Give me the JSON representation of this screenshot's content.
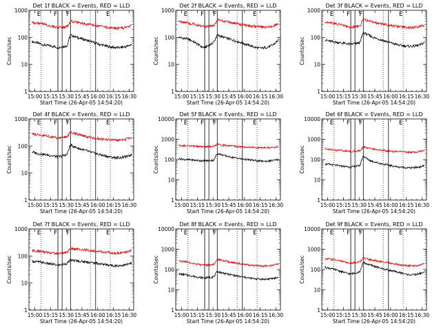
{
  "colors": {
    "events": "#000000",
    "lld": "#dd0000",
    "axes": "#000000"
  },
  "chart_data": [
    {
      "type": "line",
      "title": "Det 1f BLACK = Events, RED = LLD",
      "xlabel": "Start Time (26-Apr-05 14:54:20)",
      "ylabel": "Counts/sec",
      "x_ticks": [
        "15:00",
        "15:15",
        "15:30",
        "15:45",
        "16:00",
        "16:15",
        "16:30"
      ],
      "y_ticks": [
        "1",
        "10",
        "100",
        "1000"
      ],
      "ylim": [
        1,
        1000
      ],
      "yscale": "log",
      "vlines_dotted": [
        "15:06",
        "15:22",
        "15:53",
        "16:12"
      ],
      "vlines_solid": [
        "15:22",
        "15:26",
        "15:34",
        "15:58"
      ],
      "flags": [
        "E",
        "F",
        "F",
        "E"
      ],
      "series": [
        {
          "values": [
            70,
            65,
            60,
            55,
            52,
            50,
            48,
            45,
            42,
            44,
            46,
            50,
            120,
            110,
            100,
            92,
            85,
            78,
            72,
            66,
            60,
            55,
            52,
            48,
            45,
            43,
            42,
            42,
            43,
            45,
            48,
            55
          ]
        },
        {
          "values": [
            350,
            340,
            330,
            320,
            300,
            280,
            260,
            240,
            230,
            235,
            240,
            250,
            400,
            380,
            360,
            340,
            320,
            300,
            290,
            280,
            270,
            260,
            250,
            240,
            230,
            225,
            220,
            220,
            225,
            235,
            250,
            280
          ]
        }
      ]
    },
    {
      "type": "line",
      "title": "Det 2f BLACK = Events, RED = LLD",
      "xlabel": "Start Time (26-Apr-05 14:54:20)",
      "ylabel": "Counts/sec",
      "x_ticks": [
        "15:00",
        "15:15",
        "15:30",
        "15:45",
        "16:00",
        "16:15",
        "16:30"
      ],
      "y_ticks": [
        "1",
        "10",
        "100",
        "1000"
      ],
      "ylim": [
        1,
        1000
      ],
      "yscale": "log",
      "vlines_dotted": [
        "15:06",
        "15:22",
        "15:53",
        "16:12"
      ],
      "vlines_solid": [
        "15:22",
        "15:26",
        "15:34",
        "15:58"
      ],
      "flags": [
        "E",
        "F",
        "F",
        "E"
      ],
      "series": [
        {
          "values": [
            100,
            95,
            90,
            85,
            75,
            65,
            55,
            45,
            42,
            48,
            55,
            70,
            120,
            110,
            100,
            92,
            85,
            78,
            72,
            66,
            60,
            55,
            50,
            46,
            42,
            40,
            40,
            42,
            45,
            50,
            60,
            80
          ]
        },
        {
          "values": [
            380,
            370,
            360,
            340,
            320,
            300,
            280,
            260,
            250,
            255,
            260,
            270,
            450,
            420,
            400,
            380,
            360,
            340,
            320,
            300,
            290,
            280,
            270,
            260,
            250,
            245,
            240,
            240,
            245,
            255,
            280,
            320
          ]
        }
      ]
    },
    {
      "type": "line",
      "title": "Det 3f BLACK = Events, RED = LLD",
      "xlabel": "Start Time (26-Apr-05 14:54:20)",
      "ylabel": "Counts/sec",
      "x_ticks": [
        "15:00",
        "15:15",
        "15:30",
        "15:45",
        "16:00",
        "16:15",
        "16:30"
      ],
      "y_ticks": [
        "1",
        "10",
        "100",
        "1000"
      ],
      "ylim": [
        1,
        1000
      ],
      "yscale": "log",
      "vlines_dotted": [
        "15:06",
        "15:22",
        "15:53",
        "16:12"
      ],
      "vlines_solid": [
        "15:22",
        "15:26",
        "15:34",
        "15:58"
      ],
      "flags": [
        "E",
        "F",
        "F",
        "E"
      ],
      "series": [
        {
          "values": [
            80,
            75,
            70,
            68,
            65,
            62,
            60,
            58,
            55,
            58,
            60,
            65,
            150,
            130,
            115,
            100,
            92,
            85,
            78,
            72,
            66,
            60,
            56,
            52,
            50,
            48,
            47,
            47,
            48,
            50,
            55,
            65
          ]
        },
        {
          "values": [
            380,
            370,
            350,
            330,
            310,
            290,
            270,
            250,
            240,
            245,
            250,
            260,
            480,
            430,
            400,
            370,
            350,
            330,
            310,
            290,
            280,
            270,
            260,
            250,
            240,
            235,
            230,
            230,
            235,
            245,
            260,
            290
          ]
        }
      ]
    },
    {
      "type": "line",
      "title": "Det 4f BLACK = Events, RED = LLD",
      "xlabel": "Start Time (26-Apr-05 14:54:20)",
      "ylabel": "Counts/sec",
      "x_ticks": [
        "15:00",
        "15:15",
        "15:30",
        "15:45",
        "16:00",
        "16:15",
        "16:30"
      ],
      "y_ticks": [
        "1",
        "10",
        "100",
        "1000"
      ],
      "ylim": [
        1,
        1000
      ],
      "yscale": "log",
      "vlines_dotted": [
        "15:06",
        "15:22",
        "15:53",
        "16:12"
      ],
      "vlines_solid": [
        "15:22",
        "15:26",
        "15:34",
        "15:58"
      ],
      "flags": [
        "E",
        "F",
        "F",
        "E"
      ],
      "series": [
        {
          "values": [
            60,
            56,
            52,
            50,
            48,
            46,
            44,
            42,
            40,
            42,
            45,
            50,
            110,
            95,
            85,
            78,
            72,
            66,
            60,
            56,
            52,
            48,
            45,
            42,
            40,
            38,
            37,
            37,
            38,
            40,
            42,
            48
          ]
        },
        {
          "values": [
            280,
            270,
            260,
            250,
            240,
            230,
            220,
            210,
            200,
            205,
            210,
            220,
            320,
            300,
            280,
            260,
            240,
            220,
            210,
            200,
            190,
            185,
            180,
            175,
            170,
            168,
            165,
            165,
            168,
            175,
            190,
            210
          ]
        }
      ]
    },
    {
      "type": "line",
      "title": "Det 5f BLACK = Events, RED = LLD",
      "xlabel": "Start Time (26-Apr-05 14:54:20)",
      "ylabel": "Counts/sec",
      "x_ticks": [
        "15:00",
        "15:15",
        "15:30",
        "15:45",
        "16:00",
        "16:15",
        "16:30"
      ],
      "y_ticks": [
        "1",
        "10",
        "100",
        "1000",
        "10000"
      ],
      "ylim": [
        1,
        10000
      ],
      "yscale": "log",
      "vlines_dotted": [
        "15:06",
        "15:22",
        "15:53",
        "16:12"
      ],
      "vlines_solid": [
        "15:22",
        "15:26",
        "15:34",
        "15:58"
      ],
      "flags": [
        "E",
        "F",
        "F",
        "E"
      ],
      "series": [
        {
          "values": [
            110,
            105,
            100,
            98,
            95,
            92,
            90,
            88,
            85,
            88,
            90,
            95,
            200,
            180,
            160,
            145,
            135,
            125,
            118,
            110,
            105,
            100,
            96,
            92,
            88,
            85,
            83,
            83,
            85,
            88,
            92,
            100
          ]
        },
        {
          "values": [
            500,
            490,
            480,
            470,
            460,
            450,
            440,
            430,
            420,
            425,
            430,
            440,
            560,
            530,
            510,
            490,
            470,
            455,
            440,
            430,
            420,
            410,
            400,
            395,
            390,
            385,
            380,
            380,
            385,
            395,
            410,
            430
          ]
        }
      ]
    },
    {
      "type": "line",
      "title": "Det 6f BLACK = Events, RED = LLD",
      "xlabel": "Start Time (26-Apr-05 14:54:20)",
      "ylabel": "Counts/sec",
      "x_ticks": [
        "15:00",
        "15:15",
        "15:30",
        "15:45",
        "16:00",
        "16:15",
        "16:30"
      ],
      "y_ticks": [
        "1",
        "10",
        "100",
        "1000",
        "10000"
      ],
      "ylim": [
        1,
        10000
      ],
      "yscale": "log",
      "vlines_dotted": [
        "15:06",
        "15:22",
        "15:53",
        "16:12"
      ],
      "vlines_solid": [
        "15:22",
        "15:26",
        "15:34",
        "15:58"
      ],
      "flags": [
        "E",
        "F",
        "F",
        "E"
      ],
      "series": [
        {
          "values": [
            60,
            58,
            55,
            53,
            50,
            48,
            46,
            44,
            42,
            45,
            48,
            52,
            150,
            110,
            90,
            80,
            72,
            65,
            60,
            56,
            52,
            48,
            45,
            43,
            42,
            40,
            39,
            39,
            40,
            42,
            45,
            50
          ]
        },
        {
          "values": [
            330,
            320,
            310,
            300,
            290,
            280,
            270,
            260,
            250,
            255,
            260,
            270,
            420,
            380,
            350,
            330,
            310,
            295,
            285,
            275,
            265,
            255,
            250,
            245,
            240,
            235,
            230,
            230,
            235,
            245,
            260,
            280
          ]
        }
      ]
    },
    {
      "type": "line",
      "title": "Det 7f BLACK = Events, RED = LLD",
      "xlabel": "Start Time (26-Apr-05 14:54:20)",
      "ylabel": "Counts/sec",
      "x_ticks": [
        "15:00",
        "15:15",
        "15:30",
        "15:45",
        "16:00",
        "16:15",
        "16:30"
      ],
      "y_ticks": [
        "1",
        "10",
        "100",
        "1000"
      ],
      "ylim": [
        1,
        1000
      ],
      "yscale": "log",
      "vlines_dotted": [
        "15:06",
        "15:22",
        "15:53",
        "16:12"
      ],
      "vlines_solid": [
        "15:22",
        "15:26",
        "15:34",
        "15:58"
      ],
      "flags": [
        "E",
        "F",
        "F",
        "E"
      ],
      "series": [
        {
          "values": [
            65,
            62,
            60,
            58,
            55,
            52,
            50,
            48,
            45,
            48,
            50,
            55,
            70,
            68,
            66,
            64,
            62,
            60,
            58,
            56,
            54,
            52,
            50,
            48,
            46,
            45,
            44,
            44,
            45,
            47,
            50,
            55
          ]
        },
        {
          "values": [
            160,
            155,
            150,
            145,
            140,
            135,
            130,
            125,
            120,
            125,
            130,
            140,
            190,
            185,
            180,
            175,
            170,
            165,
            160,
            155,
            150,
            145,
            140,
            138,
            135,
            132,
            130,
            130,
            132,
            138,
            145,
            155
          ]
        }
      ]
    },
    {
      "type": "line",
      "title": "Det 8f BLACK = Events, RED = LLD",
      "xlabel": "Start Time (26-Apr-05 14:54:20)",
      "ylabel": "Counts/sec",
      "x_ticks": [
        "15:00",
        "15:15",
        "15:30",
        "15:45",
        "16:00",
        "16:15",
        "16:30"
      ],
      "y_ticks": [
        "1",
        "10",
        "100",
        "1000",
        "10000"
      ],
      "ylim": [
        1,
        10000
      ],
      "yscale": "log",
      "vlines_dotted": [
        "15:06",
        "15:22",
        "15:53",
        "16:12"
      ],
      "vlines_solid": [
        "15:22",
        "15:26",
        "15:34",
        "15:58"
      ],
      "flags": [
        "E",
        "F",
        "F",
        "E"
      ],
      "series": [
        {
          "values": [
            60,
            58,
            55,
            52,
            48,
            45,
            42,
            40,
            38,
            40,
            42,
            45,
            80,
            72,
            66,
            60,
            56,
            52,
            48,
            45,
            42,
            40,
            38,
            36,
            35,
            34,
            33,
            33,
            34,
            36,
            38,
            42
          ]
        },
        {
          "values": [
            260,
            250,
            240,
            230,
            210,
            195,
            180,
            170,
            160,
            165,
            170,
            180,
            320,
            290,
            270,
            250,
            235,
            220,
            205,
            195,
            185,
            175,
            165,
            160,
            155,
            150,
            148,
            148,
            150,
            158,
            170,
            190
          ]
        }
      ]
    },
    {
      "type": "line",
      "title": "Det 9f BLACK = Events, RED = LLD",
      "xlabel": "Start Time (26-Apr-05 14:54:20)",
      "ylabel": "Counts/sec",
      "x_ticks": [
        "15:00",
        "15:15",
        "15:30",
        "15:45",
        "16:00",
        "16:15",
        "16:30"
      ],
      "y_ticks": [
        "1",
        "10",
        "100",
        "1000",
        "10000"
      ],
      "ylim": [
        1,
        10000
      ],
      "yscale": "log",
      "vlines_dotted": [
        "15:06",
        "15:22",
        "15:53",
        "16:12"
      ],
      "vlines_solid": [
        "15:22",
        "15:26",
        "15:34",
        "15:58"
      ],
      "flags": [
        "E",
        "F",
        "F",
        "E"
      ],
      "series": [
        {
          "values": [
            130,
            120,
            110,
            100,
            90,
            80,
            72,
            65,
            60,
            65,
            72,
            80,
            220,
            190,
            170,
            150,
            135,
            120,
            110,
            100,
            92,
            85,
            78,
            72,
            66,
            60,
            56,
            55,
            56,
            60,
            66,
            75
          ]
        },
        {
          "values": [
            340,
            330,
            320,
            300,
            280,
            260,
            240,
            220,
            210,
            215,
            225,
            240,
            380,
            340,
            310,
            290,
            270,
            250,
            235,
            220,
            205,
            195,
            185,
            175,
            165,
            158,
            152,
            150,
            152,
            160,
            175,
            195
          ]
        }
      ]
    }
  ]
}
